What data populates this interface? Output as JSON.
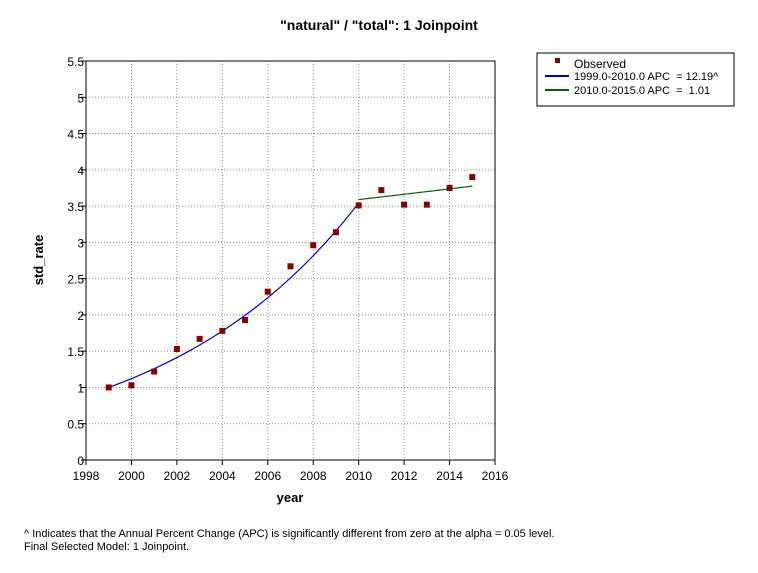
{
  "chart_data": {
    "type": "scatter",
    "title": "\"natural\" / \"total\": 1 Joinpoint",
    "xlabel": "year",
    "ylabel": "std_rate",
    "xlim": [
      1998,
      2016
    ],
    "ylim": [
      0,
      5.5
    ],
    "xticks": [
      "1998",
      "2000",
      "2002",
      "2004",
      "2006",
      "2008",
      "2010",
      "2012",
      "2014",
      "2016"
    ],
    "yticks": [
      "0",
      "0.5",
      "1",
      "1.5",
      "2",
      "2.5",
      "3",
      "3.5",
      "4",
      "4.5",
      "5",
      "5.5"
    ],
    "grid": true,
    "legend_position": "top-right, outside plot",
    "observed": {
      "name": "Observed",
      "color": "#8b0000",
      "x": [
        1999,
        2000,
        2001,
        2002,
        2003,
        2004,
        2005,
        2006,
        2007,
        2008,
        2009,
        2010,
        2011,
        2012,
        2013,
        2014,
        2015
      ],
      "y": [
        1.0,
        1.03,
        1.22,
        1.53,
        1.67,
        1.78,
        1.93,
        2.32,
        2.67,
        2.96,
        3.14,
        3.51,
        3.72,
        3.52,
        3.52,
        3.75,
        3.9
      ]
    },
    "segments": [
      {
        "name": "1999.0-2010.0 APC  = 12.19^",
        "color": "#0000cc",
        "start": 1999,
        "end": 2010,
        "y_start": 1.0,
        "apc": 12.19
      },
      {
        "name": "2010.0-2015.0 APC  =  1.01",
        "color": "#006400",
        "start": 2010,
        "end": 2015,
        "y_start": 3.59,
        "apc": 1.01
      }
    ]
  },
  "footnotes": {
    "line1": "^ Indicates that the Annual Percent Change (APC) is significantly different from zero at the alpha = 0.05 level.",
    "line2": "Final Selected Model: 1 Joinpoint."
  }
}
